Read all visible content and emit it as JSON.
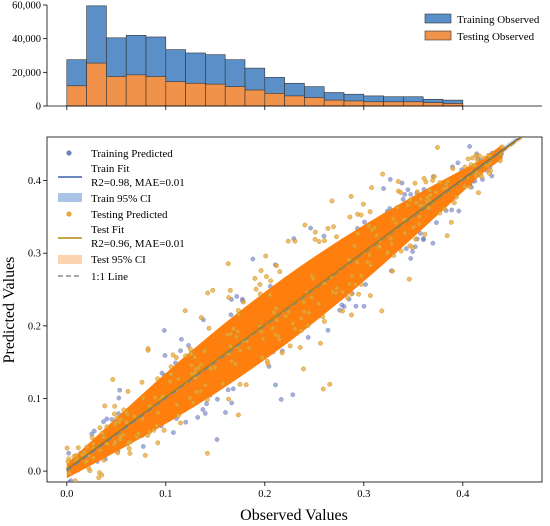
{
  "chart_data": [
    {
      "type": "bar",
      "panel": "top",
      "xlabel": "",
      "ylabel": "",
      "ylim": [
        0,
        60000
      ],
      "yticks": [
        0,
        20000,
        40000,
        60000
      ],
      "ytick_labels": [
        "0",
        "20,000",
        "40,000",
        "60,000"
      ],
      "bin_edges": [
        0.0,
        0.02,
        0.04,
        0.06,
        0.08,
        0.1,
        0.12,
        0.14,
        0.16,
        0.18,
        0.2,
        0.22,
        0.24,
        0.26,
        0.28,
        0.3,
        0.32,
        0.34,
        0.36,
        0.38,
        0.4
      ],
      "series": [
        {
          "name": "Training Observed",
          "color": "#5a8fc8",
          "values": [
            27500,
            59500,
            40500,
            42000,
            41000,
            33500,
            31500,
            30500,
            27500,
            22500,
            17000,
            13500,
            11500,
            8000,
            7000,
            6000,
            5500,
            5500,
            4000,
            3500
          ]
        },
        {
          "name": "Testing Observed",
          "color": "#f0924a",
          "values": [
            12000,
            25500,
            17500,
            18500,
            17500,
            14500,
            13500,
            13000,
            11500,
            9500,
            7500,
            6000,
            5000,
            3500,
            3000,
            2500,
            2500,
            2500,
            2000,
            1500
          ]
        }
      ],
      "legend_position": "top-right"
    },
    {
      "type": "scatter",
      "panel": "bottom",
      "xlabel": "Observed Values",
      "ylabel": "Predicted Values",
      "xlim": [
        -0.02,
        0.48
      ],
      "ylim": [
        -0.015,
        0.46
      ],
      "xticks": [
        0.0,
        0.1,
        0.2,
        0.3,
        0.4
      ],
      "xtick_labels": [
        "0.0",
        "0.1",
        "0.2",
        "0.3",
        "0.4"
      ],
      "yticks": [
        0.0,
        0.1,
        0.2,
        0.3,
        0.4
      ],
      "ytick_labels": [
        "0.0",
        "0.1",
        "0.2",
        "0.3",
        "0.4"
      ],
      "x_range_data": [
        0.0,
        0.44
      ],
      "series": [
        {
          "name": "Training Predicted",
          "color": "#4c72b0"
        },
        {
          "name": "Testing Predicted",
          "color": "#e8a838"
        }
      ],
      "fits": [
        {
          "name": "Train Fit",
          "stats": "R2=0.98, MAE=0.01",
          "color": "#3b5fa8",
          "slope": 1.0,
          "intercept": 0.002,
          "ci_name": "Train 95% CI",
          "ci_color": "#a9c4e6"
        },
        {
          "name": "Test Fit",
          "stats": "R2=0.96, MAE=0.01",
          "color": "#b8860b",
          "slope": 0.995,
          "intercept": 0.003,
          "ci_name": "Test 95% CI",
          "ci_color": "#fbd3ae"
        }
      ],
      "reference_line": {
        "name": "1:1 Line",
        "color": "#888888",
        "from": [
          0.0,
          0.0
        ],
        "to": [
          0.46,
          0.46
        ]
      },
      "legend_position": "top-left",
      "dense_cloud_color": "#ff7f0e"
    }
  ]
}
